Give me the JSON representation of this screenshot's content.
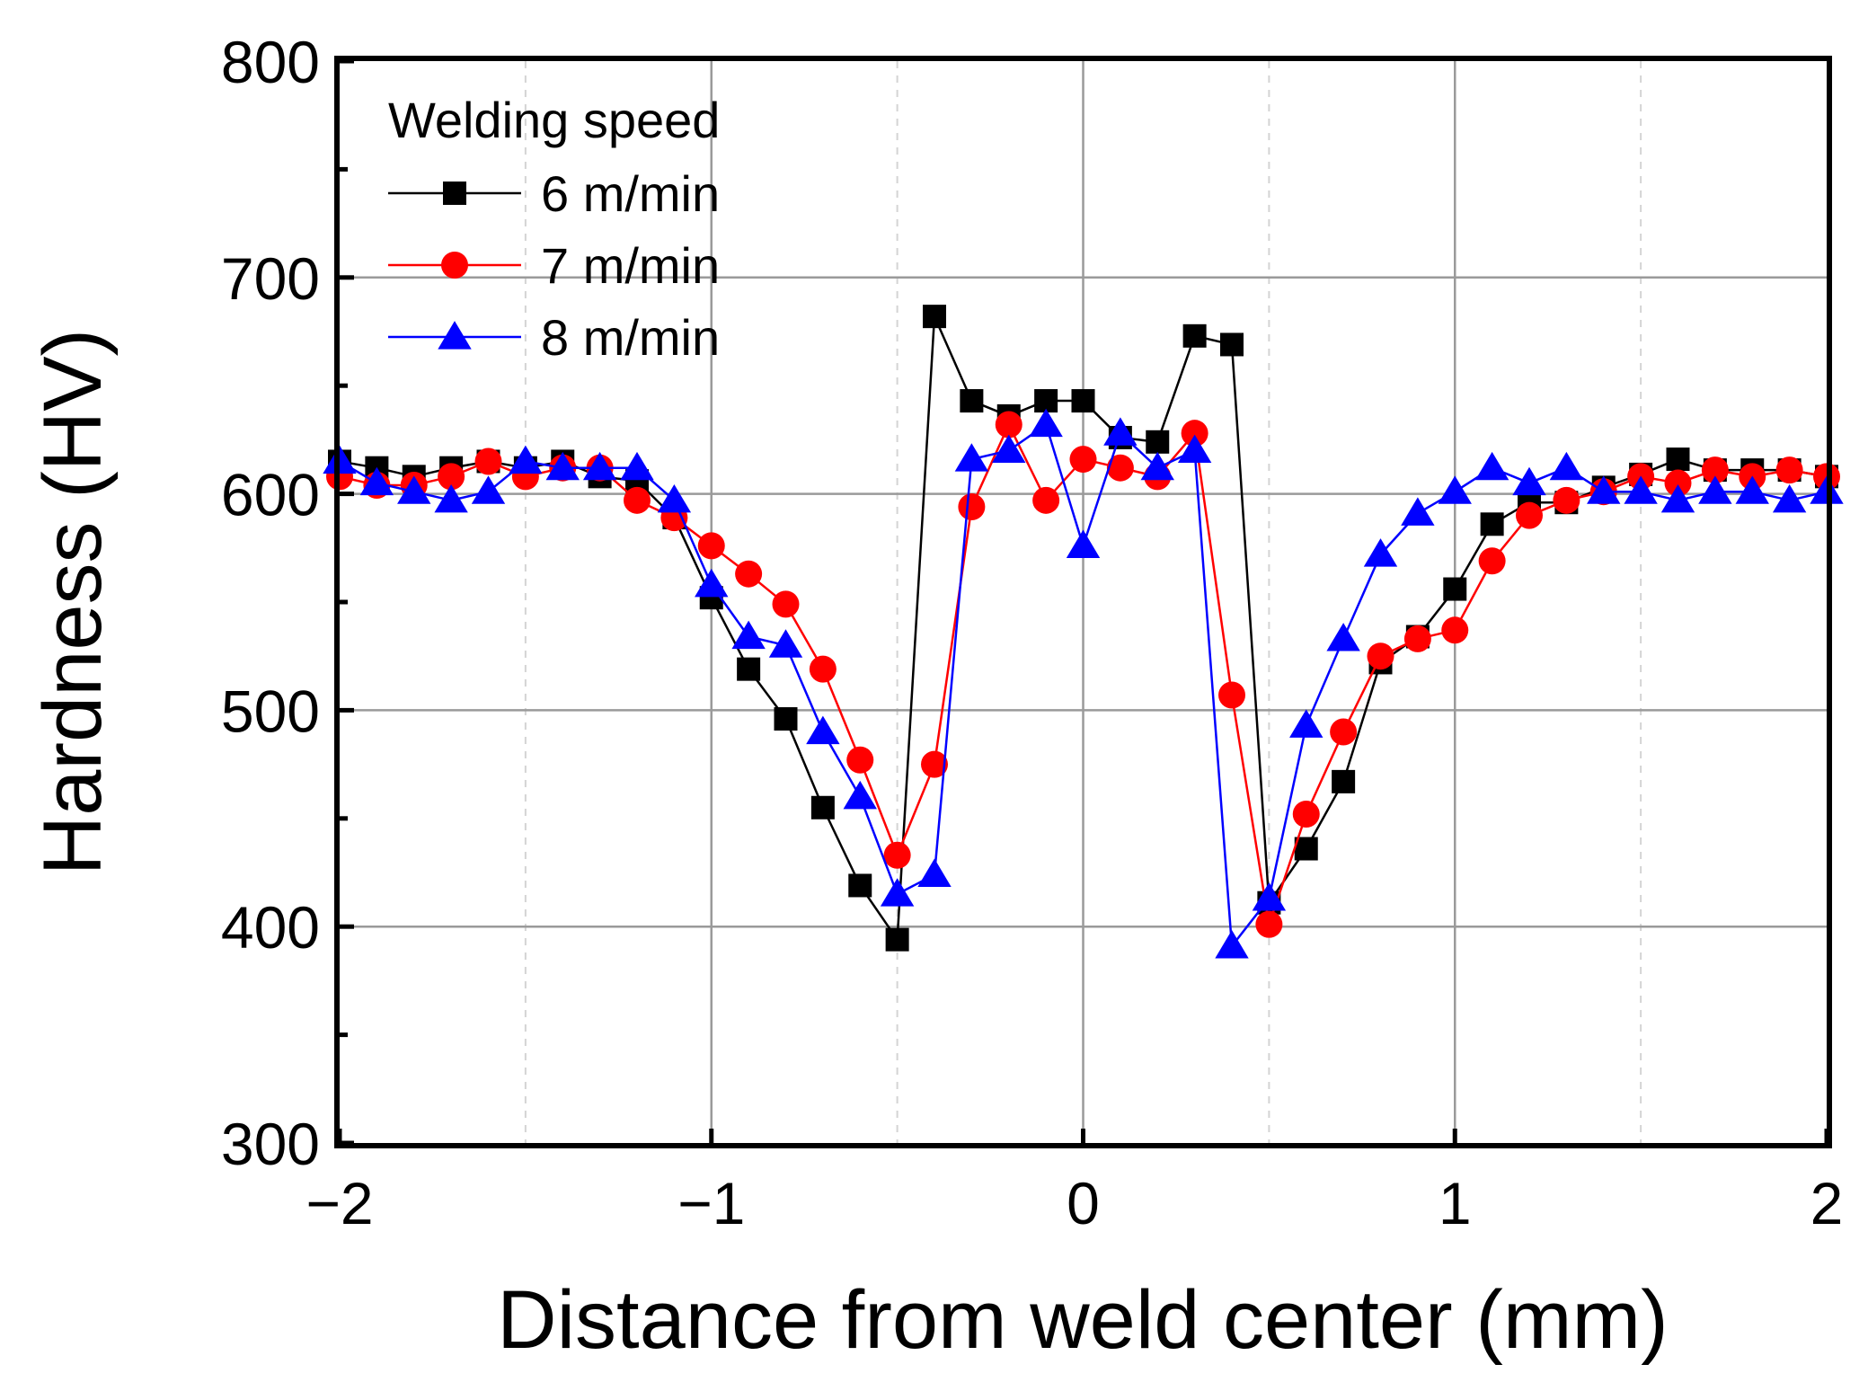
{
  "chart_data": {
    "type": "line",
    "title": "",
    "xlabel": "Distance from weld center (mm)",
    "ylabel": "Hardness (HV)",
    "xlim": [
      -2,
      2
    ],
    "ylim": [
      300,
      800
    ],
    "xticks": [
      -2,
      -1,
      0,
      1,
      2
    ],
    "xtick_labels": [
      "−2",
      "−1",
      "0",
      "1",
      "2"
    ],
    "yticks": [
      300,
      400,
      500,
      600,
      700,
      800
    ],
    "ytick_labels": [
      "300",
      "400",
      "500",
      "600",
      "700",
      "800"
    ],
    "grid": true,
    "legend": {
      "title": "Welding speed",
      "position": "top-left"
    },
    "series": [
      {
        "name": "6 m/min",
        "color": "#000000",
        "marker": "square",
        "x": [
          -2.0,
          -1.9,
          -1.8,
          -1.7,
          -1.6,
          -1.5,
          -1.4,
          -1.3,
          -1.2,
          -1.1,
          -1.0,
          -0.9,
          -0.8,
          -0.7,
          -0.6,
          -0.5,
          -0.4,
          -0.3,
          -0.2,
          -0.1,
          0.0,
          0.1,
          0.2,
          0.3,
          0.4,
          0.5,
          0.6,
          0.7,
          0.8,
          0.9,
          1.0,
          1.1,
          1.2,
          1.3,
          1.4,
          1.5,
          1.6,
          1.7,
          1.8,
          1.9,
          2.0
        ],
        "y": [
          615,
          612,
          608,
          612,
          615,
          612,
          615,
          608,
          606,
          589,
          552,
          519,
          496,
          455,
          419,
          394,
          682,
          643,
          636,
          643,
          643,
          626,
          624,
          673,
          669,
          411,
          436,
          467,
          522,
          534,
          556,
          586,
          596,
          596,
          603,
          609,
          616,
          611,
          611,
          611,
          608
        ]
      },
      {
        "name": "7 m/min",
        "color": "#ff0000",
        "marker": "circle",
        "x": [
          -2.0,
          -1.9,
          -1.8,
          -1.7,
          -1.6,
          -1.5,
          -1.4,
          -1.3,
          -1.2,
          -1.1,
          -1.0,
          -0.9,
          -0.8,
          -0.7,
          -0.6,
          -0.5,
          -0.4,
          -0.3,
          -0.2,
          -0.1,
          0.0,
          0.1,
          0.2,
          0.3,
          0.4,
          0.5,
          0.6,
          0.7,
          0.8,
          0.9,
          1.0,
          1.1,
          1.2,
          1.3,
          1.4,
          1.5,
          1.6,
          1.7,
          1.8,
          1.9,
          2.0
        ],
        "y": [
          608,
          604,
          604,
          608,
          615,
          608,
          612,
          612,
          597,
          589,
          576,
          563,
          549,
          519,
          477,
          433,
          475,
          594,
          632,
          597,
          616,
          612,
          608,
          628,
          507,
          401,
          452,
          490,
          525,
          533,
          537,
          569,
          590,
          597,
          601,
          608,
          605,
          611,
          608,
          611,
          608
        ]
      },
      {
        "name": "8 m/min",
        "color": "#0000ff",
        "marker": "triangle",
        "x": [
          -2.0,
          -1.9,
          -1.8,
          -1.7,
          -1.6,
          -1.5,
          -1.4,
          -1.3,
          -1.2,
          -1.1,
          -1.0,
          -0.9,
          -0.8,
          -0.7,
          -0.6,
          -0.5,
          -0.4,
          -0.3,
          -0.2,
          -0.1,
          0.0,
          0.1,
          0.2,
          0.3,
          0.4,
          0.5,
          0.6,
          0.7,
          0.8,
          0.9,
          1.0,
          1.1,
          1.2,
          1.3,
          1.4,
          1.5,
          1.6,
          1.7,
          1.8,
          1.9,
          2.0
        ],
        "y": [
          615,
          605,
          601,
          597,
          601,
          615,
          612,
          612,
          612,
          597,
          558,
          534,
          530,
          490,
          460,
          415,
          424,
          616,
          620,
          632,
          576,
          628,
          612,
          620,
          391,
          413,
          493,
          533,
          572,
          591,
          601,
          612,
          605,
          612,
          601,
          601,
          597,
          601,
          601,
          597,
          601
        ]
      }
    ]
  }
}
